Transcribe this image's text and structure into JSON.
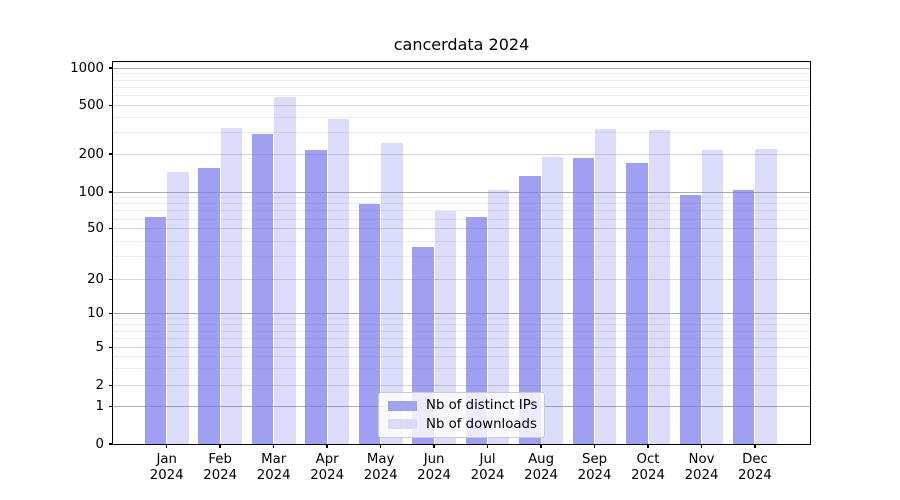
{
  "title": "cancerdata 2024",
  "legend": {
    "items": [
      {
        "label": "Nb of distinct IPs",
        "swatch_color": "#a2a2ef"
      },
      {
        "label": "Nb of downloads",
        "swatch_color": "#dcdcf9"
      }
    ]
  },
  "y_axis": {
    "ticks": [
      1000,
      500,
      200,
      100,
      50,
      20,
      10,
      5,
      2,
      1,
      0
    ]
  },
  "x_axis": {
    "months": [
      "Jan",
      "Feb",
      "Mar",
      "Apr",
      "May",
      "Jun",
      "Jul",
      "Aug",
      "Sep",
      "Oct",
      "Nov",
      "Dec"
    ],
    "year": "2024"
  },
  "colors": {
    "bar_distinct_ips": "rgba(123,123,237,0.72)",
    "bar_downloads": "rgba(123,123,237,0.27)",
    "grid_major": "#ababab",
    "grid_mid": "#d7d7d7",
    "grid_minor": "#ececec",
    "axis": "#000000"
  },
  "chart_data": {
    "type": "bar",
    "title": "cancerdata 2024",
    "categories": [
      "Jan 2024",
      "Feb 2024",
      "Mar 2024",
      "Apr 2024",
      "May 2024",
      "Jun 2024",
      "Jul 2024",
      "Aug 2024",
      "Sep 2024",
      "Oct 2024",
      "Nov 2024",
      "Dec 2024"
    ],
    "series": [
      {
        "name": "Nb of distinct IPs",
        "values": [
          62,
          156,
          295,
          216,
          80,
          36,
          62,
          134,
          186,
          171,
          94,
          103
        ]
      },
      {
        "name": "Nb of downloads",
        "values": [
          145,
          330,
          590,
          389,
          245,
          70,
          103,
          190,
          323,
          315,
          216,
          220
        ]
      }
    ],
    "xlabel": "",
    "ylabel": "",
    "yscale": "symlog",
    "y_ticks": [
      0,
      1,
      2,
      5,
      10,
      20,
      50,
      100,
      200,
      500,
      1000
    ],
    "ylim": [
      0,
      1120
    ],
    "grid": true,
    "legend_position": "lower center"
  }
}
